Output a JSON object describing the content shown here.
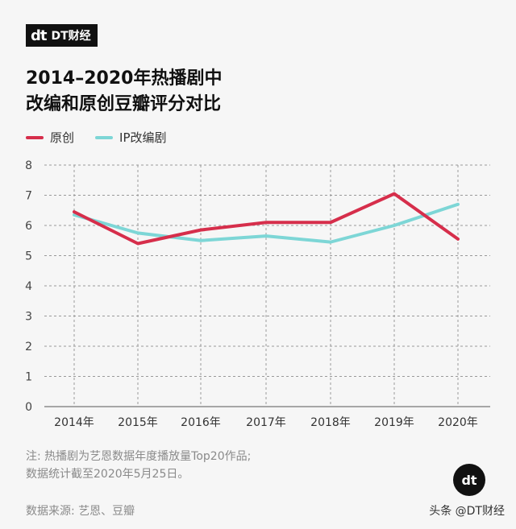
{
  "brand": {
    "logo_mark": "dt",
    "logo_text": "DT财经"
  },
  "title_lines": [
    "2014–2020年热播剧中",
    "改编和原创豆瓣评分对比"
  ],
  "colors": {
    "original": "#d62e4b",
    "ip": "#7dd6d6",
    "grid": "#999999"
  },
  "chart_data": {
    "type": "line",
    "title": "2014–2020年热播剧中改编和原创豆瓣评分对比",
    "categories": [
      "2014年",
      "2015年",
      "2016年",
      "2017年",
      "2018年",
      "2019年",
      "2020年"
    ],
    "series": [
      {
        "name": "原创",
        "values": [
          6.45,
          5.4,
          5.85,
          6.1,
          6.1,
          7.05,
          5.55
        ]
      },
      {
        "name": "IP改编剧",
        "values": [
          6.35,
          5.75,
          5.5,
          5.65,
          5.45,
          6.0,
          6.7
        ]
      }
    ],
    "yticks": [
      "0",
      "1",
      "2",
      "3",
      "4",
      "5",
      "6",
      "7",
      "8"
    ],
    "ylim": [
      0,
      8
    ],
    "grid": true,
    "legend_position": "top-left"
  },
  "note_lines": [
    "注: 热播剧为艺恩数据年度播放量Top20作品;",
    "数据统计截至2020年5月25日。"
  ],
  "source": "数据来源: 艺恩、豆瓣",
  "corner_mark": "dt",
  "attribution": "头条 @DT财经"
}
